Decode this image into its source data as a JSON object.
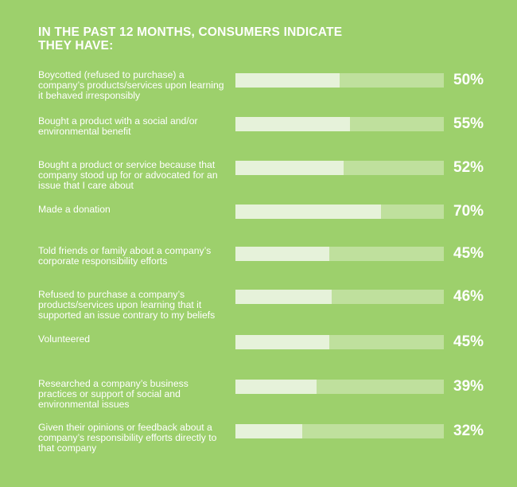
{
  "chart_data": {
    "type": "bar",
    "orientation": "horizontal",
    "title": "IN THE PAST 12 MONTHS, CONSUMERS INDICATE THEY HAVE:",
    "unit": "%",
    "xlim": [
      0,
      100
    ],
    "categories": [
      "Boycotted (refused to purchase) a company’s products/services upon learning it behaved irresponsibly",
      "Bought a product with a social and/or environmental benefit",
      "Bought a product or service because that company stood up for or advocated for an issue that I care about",
      "Made a donation",
      "Told friends or family about a company’s corporate responsibility efforts",
      "Refused to purchase a company’s products/services upon learning that it supported an issue contrary to my beliefs",
      "Volunteered",
      "Researched a company’s business practices or support of social and environmental issues",
      "Given their opinions or feedback about a company’s responsibility efforts directly to that company"
    ],
    "values": [
      50,
      55,
      52,
      70,
      45,
      46,
      45,
      39,
      32
    ],
    "value_labels": [
      "50%",
      "55%",
      "52%",
      "70%",
      "45%",
      "46%",
      "45%",
      "39%",
      "32%"
    ],
    "colors": {
      "background": "#9dd06c",
      "track": "#bfe09d",
      "fill": "#e6f2da",
      "text": "#ffffff"
    }
  }
}
